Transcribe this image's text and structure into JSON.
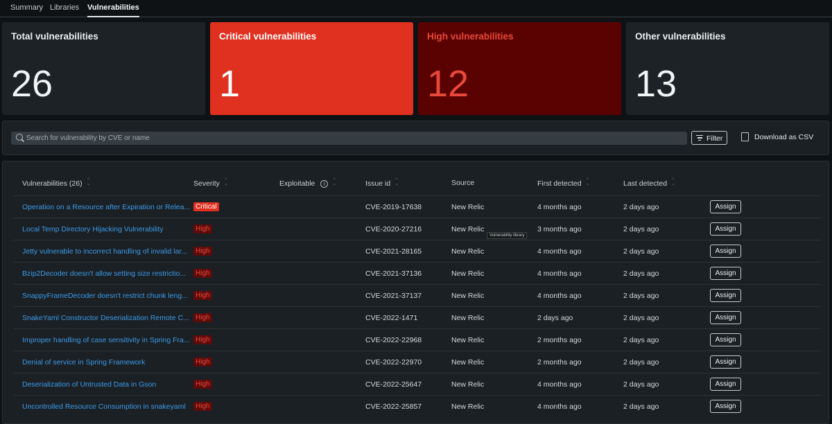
{
  "tabs": [
    {
      "label": "Summary"
    },
    {
      "label": "Libraries"
    },
    {
      "label": "Vulnerabilities",
      "active": true
    }
  ],
  "cards": [
    {
      "title": "Total vulnerabilities",
      "value": "26",
      "bg": "#1c2226",
      "title_color": "#eef0f1",
      "value_color": "#f1f3f4"
    },
    {
      "title": "Critical vulnerabilities",
      "value": "1",
      "bg": "#e0301f",
      "title_color": "#ffffff",
      "value_color": "#ffffff"
    },
    {
      "title": "High vulnerabilities",
      "value": "12",
      "bg": "#5a0202",
      "title_color": "#e8493b",
      "value_color": "#e8493b"
    },
    {
      "title": "Other vulnerabilities",
      "value": "13",
      "bg": "#1c2226",
      "title_color": "#eef0f1",
      "value_color": "#f1f3f4"
    }
  ],
  "toolbar": {
    "search_placeholder": "Search for vulnerability by CVE or name",
    "filter_label": "Filter",
    "download_label": "Download as CSV"
  },
  "table": {
    "columns": [
      "Vulnerabilities (26)",
      "Severity",
      "Exploitable",
      "Issue id",
      "Source",
      "First detected",
      "Last detected"
    ],
    "assign_label": "Assign",
    "rows": [
      {
        "name": "Operation on a Resource after Expiration or Relea...",
        "severity": "Critical",
        "issue": "CVE-2019-17638",
        "source": "New Relic",
        "first": "4 months ago",
        "last": "2 days ago"
      },
      {
        "name": "Local Temp Directory Hijacking Vulnerability",
        "severity": "High",
        "issue": "CVE-2020-27216",
        "source": "New Relic",
        "first": "3 months ago",
        "last": "2 days ago"
      },
      {
        "name": "Jetty vulnerable to incorrect handling of invalid lar...",
        "severity": "High",
        "issue": "CVE-2021-28165",
        "source": "New Relic",
        "first": "4 months ago",
        "last": "2 days ago"
      },
      {
        "name": "Bzip2Decoder doesn't allow setting size restrictio...",
        "severity": "High",
        "issue": "CVE-2021-37136",
        "source": "New Relic",
        "first": "4 months ago",
        "last": "2 days ago"
      },
      {
        "name": "SnappyFrameDecoder doesn't restrict chunk leng...",
        "severity": "High",
        "issue": "CVE-2021-37137",
        "source": "New Relic",
        "first": "4 months ago",
        "last": "2 days ago"
      },
      {
        "name": "SnakeYaml Constructor Deserialization Remote C...",
        "severity": "High",
        "issue": "CVE-2022-1471",
        "source": "New Relic",
        "first": "2 days ago",
        "last": "2 days ago"
      },
      {
        "name": "Improper handling of case sensitivity in Spring Fra...",
        "severity": "High",
        "issue": "CVE-2022-22968",
        "source": "New Relic",
        "first": "2 months ago",
        "last": "2 days ago"
      },
      {
        "name": "Denial of service in Spring Framework",
        "severity": "High",
        "issue": "CVE-2022-22970",
        "source": "New Relic",
        "first": "2 months ago",
        "last": "2 days ago"
      },
      {
        "name": "Deserialization of Untrusted Data in Gson",
        "severity": "High",
        "issue": "CVE-2022-25647",
        "source": "New Relic",
        "first": "4 months ago",
        "last": "2 days ago"
      },
      {
        "name": "Uncontrolled Resource Consumption in snakeyaml",
        "severity": "High",
        "issue": "CVE-2022-25857",
        "source": "New Relic",
        "first": "4 months ago",
        "last": "2 days ago"
      }
    ]
  },
  "tooltip": "Vulnerability library"
}
